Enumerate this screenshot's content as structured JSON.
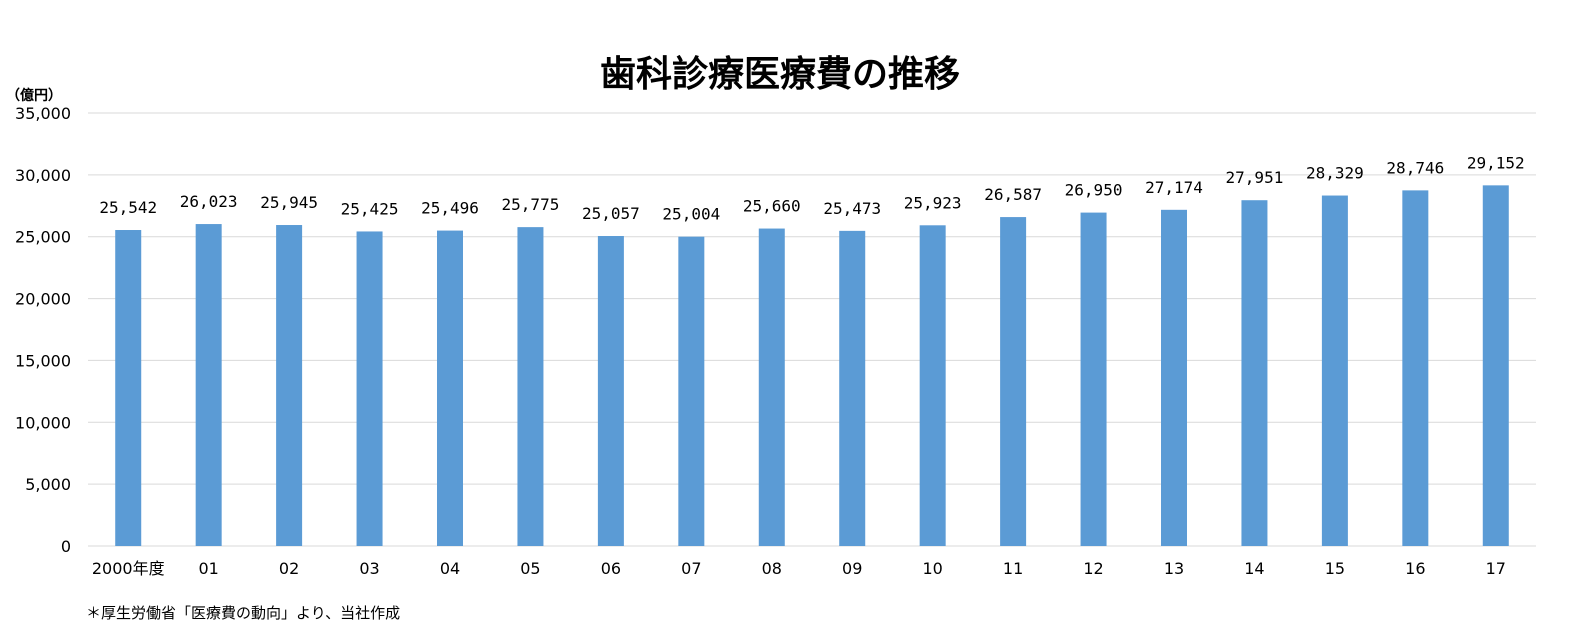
{
  "chart_data": {
    "type": "bar",
    "title": "歯科診療医療費の推移",
    "ylabel": "（億円）",
    "categories": [
      "2000年度",
      "01",
      "02",
      "03",
      "04",
      "05",
      "06",
      "07",
      "08",
      "09",
      "10",
      "11",
      "12",
      "13",
      "14",
      "15",
      "16",
      "17"
    ],
    "values": [
      25542,
      26023,
      25945,
      25425,
      25496,
      25775,
      25057,
      25004,
      25660,
      25473,
      25923,
      26587,
      26950,
      27174,
      27951,
      28329,
      28746,
      29152
    ],
    "value_labels": [
      "25,542",
      "26,023",
      "25,945",
      "25,425",
      "25,496",
      "25,775",
      "25,057",
      "25,004",
      "25,660",
      "25,473",
      "25,923",
      "26,587",
      "26,950",
      "27,174",
      "27,951",
      "28,329",
      "28,746",
      "29,152"
    ],
    "ylim": [
      0,
      35000
    ],
    "yticks": [
      0,
      5000,
      10000,
      15000,
      20000,
      25000,
      30000,
      35000
    ],
    "ytick_labels": [
      "0",
      "5,000",
      "10,000",
      "15,000",
      "20,000",
      "25,000",
      "30,000",
      "35,000"
    ],
    "grid": true,
    "legend": "none",
    "bar_color": "#5b9bd5",
    "source_note": "＊厚生労働省「医療費の動向」より、当社作成"
  }
}
